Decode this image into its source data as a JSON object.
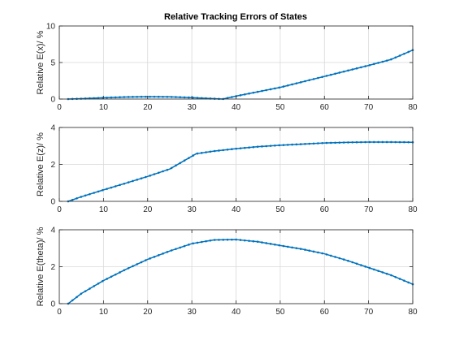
{
  "figure_title": "Relative Tracking Errors of States",
  "line_color": "#0072BD",
  "grid_color": "#d9d9d9",
  "chart_data": [
    {
      "type": "line",
      "title": "Relative Tracking Errors of States",
      "xlabel": "",
      "ylabel": "Relative E(x)/ %",
      "xlim": [
        0,
        80
      ],
      "ylim": [
        0,
        10
      ],
      "xticks": [
        0,
        10,
        20,
        30,
        40,
        50,
        60,
        70,
        80
      ],
      "yticks": [
        0,
        5,
        10
      ],
      "grid": true,
      "markers": true,
      "series": [
        {
          "x": [
            2,
            5,
            10,
            15,
            20,
            25,
            30,
            35,
            37,
            40,
            45,
            50,
            55,
            60,
            65,
            70,
            75,
            80
          ],
          "values": [
            0.0,
            0.05,
            0.18,
            0.28,
            0.32,
            0.3,
            0.2,
            0.05,
            0.0,
            0.4,
            1.0,
            1.6,
            2.35,
            3.1,
            3.85,
            4.6,
            5.4,
            6.7
          ]
        }
      ]
    },
    {
      "type": "line",
      "title": "",
      "xlabel": "",
      "ylabel": "Relative E(z)/ %",
      "xlim": [
        0,
        80
      ],
      "ylim": [
        0,
        4
      ],
      "xticks": [
        0,
        10,
        20,
        30,
        40,
        50,
        60,
        70,
        80
      ],
      "yticks": [
        0,
        2,
        4
      ],
      "grid": true,
      "markers": true,
      "series": [
        {
          "x": [
            2,
            5,
            10,
            15,
            20,
            25,
            31,
            35,
            40,
            45,
            50,
            55,
            60,
            65,
            70,
            75,
            80
          ],
          "values": [
            0.0,
            0.25,
            0.62,
            0.98,
            1.35,
            1.75,
            2.58,
            2.72,
            2.85,
            2.96,
            3.04,
            3.1,
            3.16,
            3.19,
            3.21,
            3.21,
            3.2
          ]
        }
      ]
    },
    {
      "type": "line",
      "title": "",
      "xlabel": "",
      "ylabel": "Relative E(theta)/ %",
      "xlim": [
        0,
        80
      ],
      "ylim": [
        0,
        4
      ],
      "xticks": [
        0,
        10,
        20,
        30,
        40,
        50,
        60,
        70,
        80
      ],
      "yticks": [
        0,
        2,
        4
      ],
      "grid": true,
      "markers": true,
      "series": [
        {
          "x": [
            2,
            5,
            10,
            15,
            20,
            25,
            30,
            35,
            40,
            45,
            50,
            55,
            60,
            65,
            70,
            75,
            80
          ],
          "values": [
            0.0,
            0.55,
            1.25,
            1.85,
            2.4,
            2.85,
            3.25,
            3.45,
            3.47,
            3.35,
            3.15,
            2.95,
            2.7,
            2.35,
            1.95,
            1.55,
            1.05
          ]
        }
      ]
    }
  ]
}
